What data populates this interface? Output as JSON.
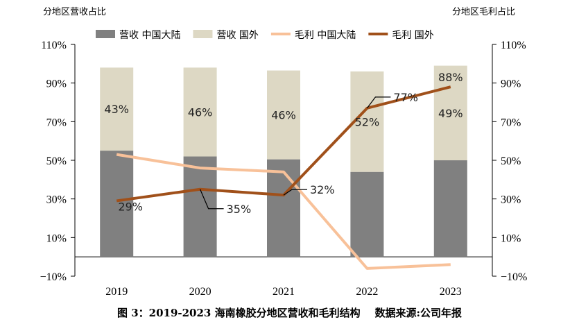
{
  "chart_data": {
    "type": "bar+line",
    "left_axis_title": "分地区营收占比",
    "right_axis_title": "分地区毛利占比",
    "categories": [
      "2019",
      "2020",
      "2021",
      "2022",
      "2023"
    ],
    "ylim": [
      -10,
      110
    ],
    "yticks": [
      -10,
      10,
      30,
      50,
      70,
      90,
      110
    ],
    "ytick_labels": [
      "−10%",
      "10%",
      "30%",
      "50%",
      "70%",
      "90%",
      "110%"
    ],
    "series": [
      {
        "name": "营收 中国大陆",
        "type": "stacked-bar",
        "color": "#808080",
        "values": [
          55,
          52,
          50.5,
          44,
          50
        ]
      },
      {
        "name": "营收 国外",
        "type": "stacked-bar",
        "color": "#ddd8c4",
        "values": [
          43,
          46,
          46,
          52,
          49
        ],
        "labels": [
          "43%",
          "46%",
          "46%",
          "52%",
          "49%"
        ]
      },
      {
        "name": "毛利 中国大陆",
        "type": "line",
        "color": "#f8c199",
        "values": [
          53,
          46,
          44,
          -6,
          -4
        ]
      },
      {
        "name": "毛利 国外",
        "type": "line",
        "color": "#a0501a",
        "values": [
          29,
          35,
          32,
          77,
          88
        ],
        "labels": [
          "29%",
          "35%",
          "32%",
          "77%",
          "88%"
        ]
      }
    ],
    "caption": "图 3：2019-2023 海南橡胶分地区营收和毛利结构    数据来源:公司年报"
  }
}
